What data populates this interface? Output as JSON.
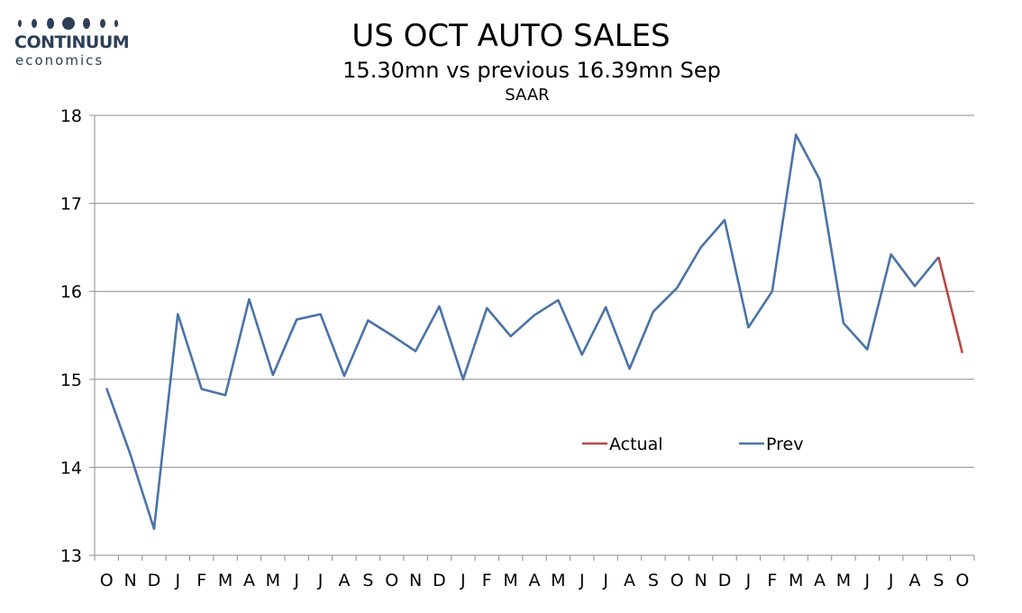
{
  "logo": {
    "name": "CONTINUUM",
    "sub": "economics",
    "color": "#2d3f57"
  },
  "chart_data": {
    "type": "line",
    "title": "US OCT AUTO SALES",
    "subtitle": "15.30mn vs previous 16.39mn Sep",
    "subtitle2": "SAAR",
    "categories": [
      "O",
      "N",
      "D",
      "J",
      "F",
      "M",
      "A",
      "M",
      "J",
      "J",
      "A",
      "S",
      "O",
      "N",
      "D",
      "J",
      "F",
      "M",
      "A",
      "M",
      "J",
      "J",
      "A",
      "S",
      "O",
      "N",
      "D",
      "J",
      "F",
      "M",
      "A",
      "M",
      "J",
      "J",
      "A",
      "S",
      "O"
    ],
    "ylim": [
      13,
      18
    ],
    "yticks": [
      "13",
      "14",
      "15",
      "16",
      "17",
      "18"
    ],
    "grid": true,
    "legend_position": "inside-right",
    "series": [
      {
        "name": "Actual",
        "color": "#b94745",
        "values": [
          null,
          null,
          null,
          null,
          null,
          null,
          null,
          null,
          null,
          null,
          null,
          null,
          null,
          null,
          null,
          null,
          null,
          null,
          null,
          null,
          null,
          null,
          null,
          null,
          null,
          null,
          null,
          null,
          null,
          null,
          null,
          null,
          null,
          null,
          null,
          16.39,
          15.3
        ]
      },
      {
        "name": "Prev",
        "color": "#4a73a8",
        "values": [
          14.9,
          14.15,
          13.3,
          15.74,
          14.89,
          14.82,
          15.91,
          15.05,
          15.68,
          15.74,
          15.04,
          15.67,
          15.5,
          15.32,
          15.83,
          15.0,
          15.81,
          15.49,
          15.73,
          15.9,
          15.28,
          15.82,
          15.12,
          15.77,
          16.04,
          16.5,
          16.81,
          15.59,
          16.0,
          17.78,
          17.27,
          15.64,
          15.34,
          16.42,
          16.06,
          16.39,
          null
        ]
      }
    ]
  }
}
